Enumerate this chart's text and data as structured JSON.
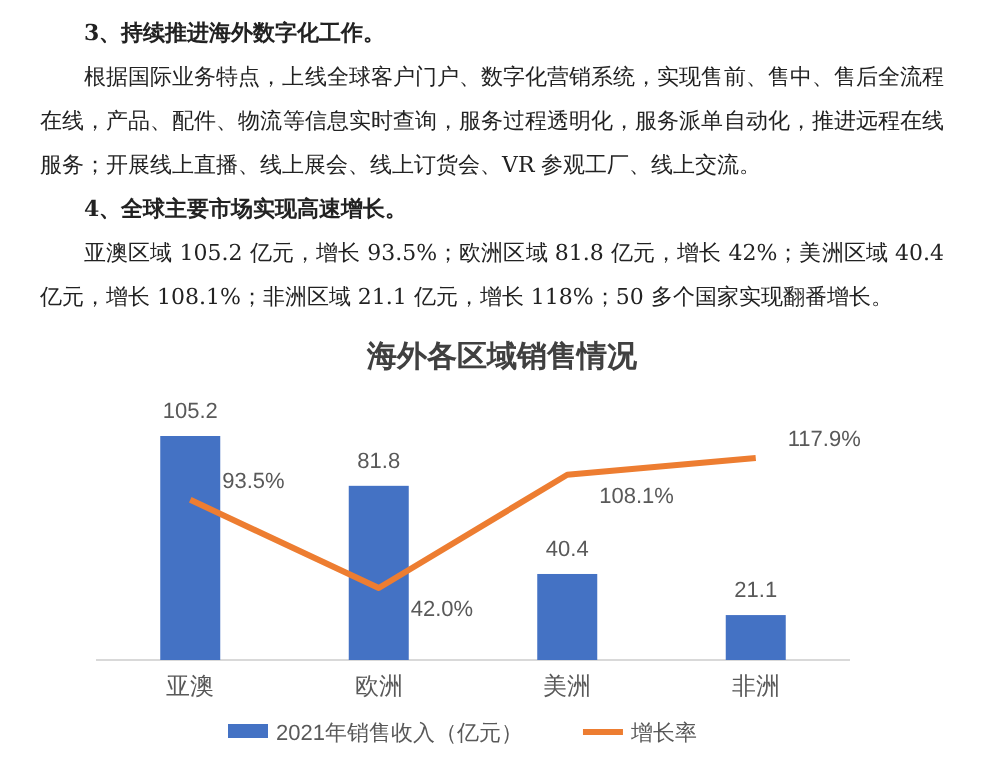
{
  "chart_data": {
    "type": "bar",
    "title": "海外各区域销售情况",
    "annotations": [
      "3、持续推进海外数字化工作。",
      "根据国际业务特点，上线全球客户门户、数字化营销系统，实现售前、售中、售后全流程在线，产品、配件、物流等信息实时查询，服务过程透明化，服务派单自动化，推进远程在线服务；开展线上直播、线上展会、线上订货会、VR 参观工厂、线上交流。",
      "4、全球主要市场实现高速增长。",
      "亚澳区域 105.2 亿元，增长 93.5%；欧洲区域 81.8 亿元，增长 42%；美洲区域 40.4 亿元，增长 108.1%；非洲区域 21.1 亿元，增长 118%；50 多个国家实现翻番增长。"
    ],
    "categories": [
      "亚澳",
      "欧洲",
      "美洲",
      "非洲"
    ],
    "series": [
      {
        "name": "2021年销售收入（亿元）",
        "color": "#4472c4",
        "values": [
          105.2,
          81.8,
          40.4,
          21.1
        ]
      },
      {
        "name": "增长率",
        "type": "line",
        "axis": "y2",
        "color": "#ed7d31",
        "values": [
          93.5,
          42.0,
          108.1,
          117.9
        ],
        "value_labels": [
          "93.5%",
          "42.0%",
          "108.1%",
          "117.9%"
        ]
      }
    ],
    "data_labels": true,
    "legend": "bottom",
    "marker": "none"
  }
}
